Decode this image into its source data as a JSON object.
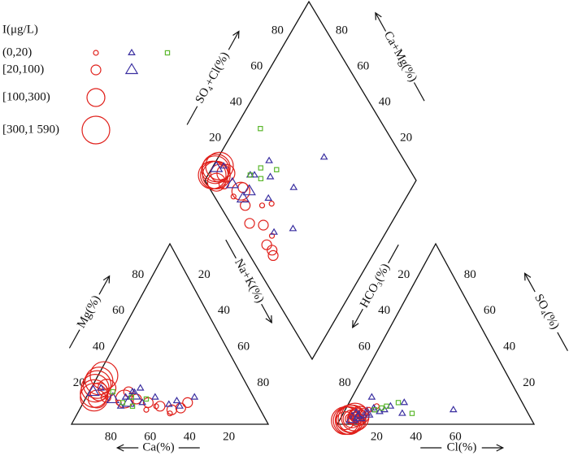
{
  "chart_data": {
    "type": "piper",
    "legend_title": "I(μg/L)",
    "classes": [
      "(0,20)",
      "[20,100)",
      "[100,300)",
      "[300,1 590)"
    ],
    "colors": {
      "circle": "#e0201b",
      "triangle": "#3a2fa0",
      "square": "#5cb82e"
    },
    "axes": {
      "Ca": {
        "title": "Ca(%)",
        "ticks": [
          20,
          40,
          60,
          80
        ]
      },
      "Mg": {
        "title": "Mg(%)",
        "ticks": [
          20,
          40,
          60,
          80
        ]
      },
      "NaK": {
        "title": "Na+K(%)",
        "ticks": [
          20,
          40,
          60,
          80
        ]
      },
      "Cl": {
        "title": "Cl(%)",
        "ticks": [
          20,
          40,
          60
        ]
      },
      "HCO3": {
        "title": "HCO₃(%)",
        "ticks": [
          20,
          40,
          60,
          80
        ]
      },
      "SO4": {
        "title": "SO₄(%)",
        "ticks": [
          20,
          40,
          60,
          80
        ]
      },
      "SO4Cl": {
        "title": "SO₄+Cl(%)",
        "ticks": [
          20,
          40,
          60,
          80
        ]
      },
      "CaMg": {
        "title": "Ca+Mg(%)",
        "ticks": [
          20,
          40,
          60,
          80
        ]
      }
    },
    "samples": [
      {
        "marker": "circle",
        "class": 3,
        "Ca": 78,
        "Mg": 20,
        "SO4": 3,
        "Cl": 5
      },
      {
        "marker": "circle",
        "class": 3,
        "Ca": 80,
        "Mg": 17,
        "SO4": 2,
        "Cl": 4
      },
      {
        "marker": "circle",
        "class": 3,
        "Ca": 76,
        "Mg": 22,
        "SO4": 3,
        "Cl": 6
      },
      {
        "marker": "circle",
        "class": 3,
        "Ca": 74,
        "Mg": 24,
        "SO4": 2,
        "Cl": 3
      },
      {
        "marker": "circle",
        "class": 3,
        "Ca": 70,
        "Mg": 27,
        "SO4": 4,
        "Cl": 7
      },
      {
        "marker": "circle",
        "class": 3,
        "Ca": 81,
        "Mg": 15,
        "SO4": 2,
        "Cl": 5
      },
      {
        "marker": "circle",
        "class": 2,
        "Ca": 77,
        "Mg": 18,
        "SO4": 3,
        "Cl": 6
      },
      {
        "marker": "circle",
        "class": 2,
        "Ca": 72,
        "Mg": 20,
        "SO4": 4,
        "Cl": 8
      },
      {
        "marker": "circle",
        "class": 2,
        "Ca": 80,
        "Mg": 14,
        "SO4": 2,
        "Cl": 3
      },
      {
        "marker": "circle",
        "class": 2,
        "Ca": 66,
        "Mg": 14,
        "SO4": 5,
        "Cl": 9
      },
      {
        "marker": "circle",
        "class": 1,
        "Ca": 75,
        "Mg": 15,
        "SO4": 3,
        "Cl": 5
      },
      {
        "marker": "circle",
        "class": 1,
        "Ca": 60,
        "Mg": 14,
        "SO4": 4,
        "Cl": 8
      },
      {
        "marker": "circle",
        "class": 1,
        "Ca": 55,
        "Mg": 12,
        "SO4": 3,
        "Cl": 6
      },
      {
        "marker": "circle",
        "class": 1,
        "Ca": 50,
        "Mg": 10,
        "SO4": 5,
        "Cl": 10
      },
      {
        "marker": "circle",
        "class": 1,
        "Ca": 45,
        "Mg": 8,
        "SO4": 4,
        "Cl": 7
      },
      {
        "marker": "circle",
        "class": 1,
        "Ca": 62,
        "Mg": 18,
        "SO4": 6,
        "Cl": 10
      },
      {
        "marker": "circle",
        "class": 1,
        "Ca": 40,
        "Mg": 9,
        "SO4": 3,
        "Cl": 9
      },
      {
        "marker": "circle",
        "class": 1,
        "Ca": 35,
        "Mg": 12,
        "SO4": 5,
        "Cl": 6
      },
      {
        "marker": "circle",
        "class": 0,
        "Ca": 58,
        "Mg": 8,
        "SO4": 8,
        "Cl": 12
      },
      {
        "marker": "circle",
        "class": 0,
        "Ca": 52,
        "Mg": 10,
        "SO4": 10,
        "Cl": 15
      },
      {
        "marker": "circle",
        "class": 0,
        "Ca": 47,
        "Mg": 6,
        "SO4": 6,
        "Cl": 10
      },
      {
        "marker": "circle",
        "class": 0,
        "Ca": 70,
        "Mg": 12,
        "SO4": 4,
        "Cl": 5
      },
      {
        "marker": "triangle",
        "class": 0,
        "Ca": 75,
        "Mg": 20,
        "SO4": 5,
        "Cl": 8
      },
      {
        "marker": "triangle",
        "class": 0,
        "Ca": 65,
        "Mg": 15,
        "SO4": 8,
        "Cl": 15
      },
      {
        "marker": "triangle",
        "class": 0,
        "Ca": 58,
        "Mg": 12,
        "SO4": 10,
        "Cl": 22
      },
      {
        "marker": "triangle",
        "class": 0,
        "Ca": 50,
        "Mg": 15,
        "SO4": 7,
        "Cl": 18
      },
      {
        "marker": "triangle",
        "class": 0,
        "Ca": 45,
        "Mg": 11,
        "SO4": 12,
        "Cl": 28
      },
      {
        "marker": "triangle",
        "class": 0,
        "Ca": 40,
        "Mg": 13,
        "SO4": 6,
        "Cl": 12
      },
      {
        "marker": "triangle",
        "class": 0,
        "Ca": 30,
        "Mg": 15,
        "SO4": 8,
        "Cl": 20
      },
      {
        "marker": "triangle",
        "class": 0,
        "Ca": 60,
        "Mg": 18,
        "SO4": 15,
        "Cl": 10
      },
      {
        "marker": "triangle",
        "class": 0,
        "Ca": 70,
        "Mg": 10,
        "SO4": 9,
        "Cl": 14
      },
      {
        "marker": "triangle",
        "class": 0,
        "Ca": 40,
        "Mg": 10,
        "SO4": 8,
        "Cl": 55
      },
      {
        "marker": "triangle",
        "class": 0,
        "Ca": 55,
        "Mg": 20,
        "SO4": 6,
        "Cl": 30
      },
      {
        "marker": "triangle",
        "class": 1,
        "Ca": 80,
        "Mg": 18,
        "SO4": 3,
        "Cl": 6
      },
      {
        "marker": "triangle",
        "class": 1,
        "Ca": 72,
        "Mg": 14,
        "SO4": 5,
        "Cl": 7
      },
      {
        "marker": "triangle",
        "class": 1,
        "Ca": 65,
        "Mg": 12,
        "SO4": 4,
        "Cl": 9
      },
      {
        "marker": "triangle",
        "class": 1,
        "Ca": 60,
        "Mg": 16,
        "SO4": 6,
        "Cl": 12
      },
      {
        "marker": "square",
        "class": 0,
        "Ca": 68,
        "Mg": 12,
        "SO4": 8,
        "Cl": 15
      },
      {
        "marker": "square",
        "class": 0,
        "Ca": 62,
        "Mg": 15,
        "SO4": 10,
        "Cl": 20
      },
      {
        "marker": "square",
        "class": 0,
        "Ca": 55,
        "Mg": 14,
        "SO4": 12,
        "Cl": 25
      },
      {
        "marker": "square",
        "class": 0,
        "Ca": 70,
        "Mg": 18,
        "SO4": 6,
        "Cl": 35
      },
      {
        "marker": "square",
        "class": 0,
        "Ca": 64,
        "Mg": 10,
        "SO4": 9,
        "Cl": 18
      }
    ]
  }
}
